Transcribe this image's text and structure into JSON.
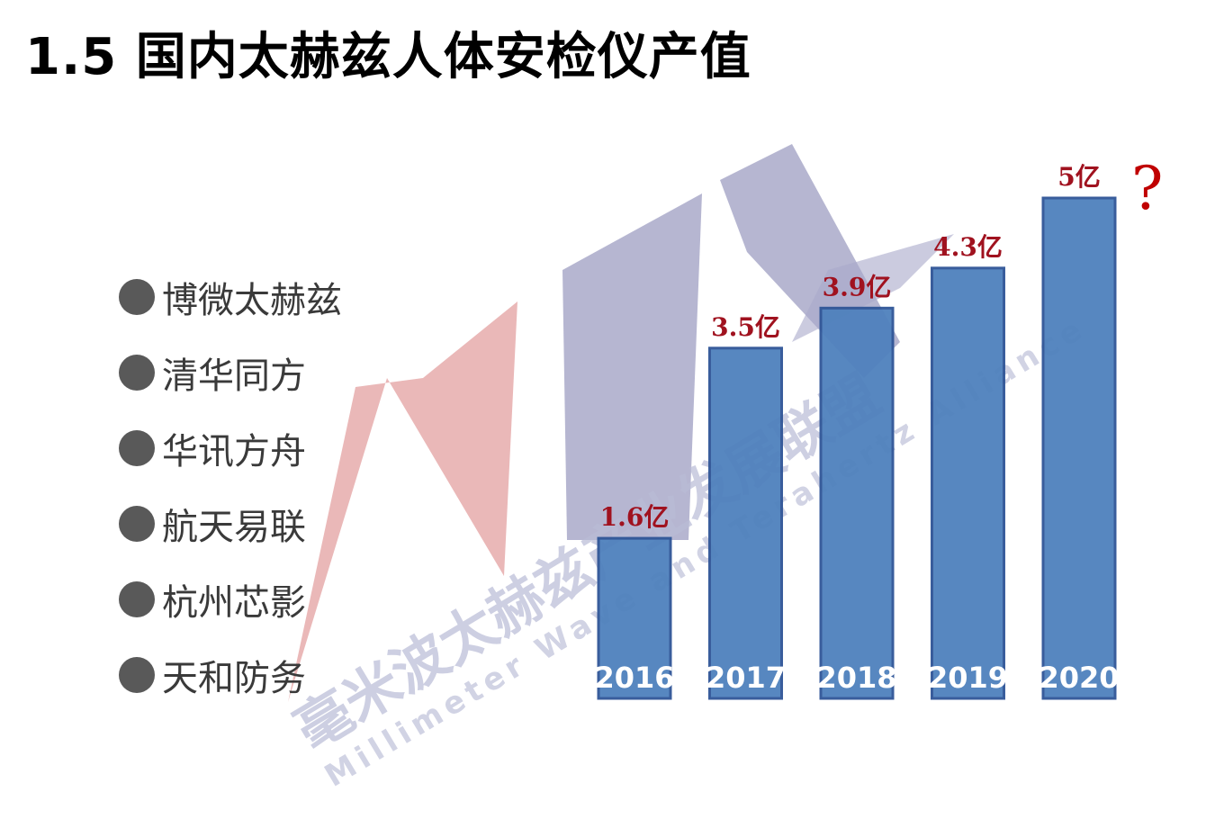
{
  "page": {
    "title": "1.5 国内太赫兹人体安检仪产值"
  },
  "companies": [
    "博微太赫兹",
    "清华同方",
    "华讯方舟",
    "航天易联",
    "杭州芯影",
    "天和防务"
  ],
  "watermark": {
    "cn": "毫米波太赫兹产业发展联盟",
    "en": "Millimeter Wave and Terahertz Alliance"
  },
  "chart_data": {
    "type": "bar",
    "categories": [
      "2016",
      "2017",
      "2018",
      "2019",
      "2020"
    ],
    "values": [
      1.6,
      3.5,
      3.9,
      4.3,
      5
    ],
    "data_labels": [
      "1.6亿",
      "3.5亿",
      "3.9亿",
      "4.3亿",
      "5亿"
    ],
    "annotation": "?",
    "title": "",
    "ylim": [
      0,
      5
    ],
    "grid": false,
    "bar_color": "#4f81bd",
    "bar_edge_color": "#2f5597",
    "label_color": "#a0121f"
  }
}
